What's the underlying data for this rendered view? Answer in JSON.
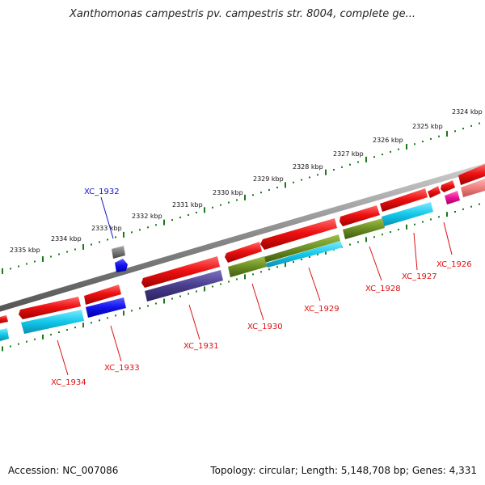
{
  "title": "Xanthomonas campestris pv. campestris str. 8004, complete ge...",
  "footer": {
    "accession": "Accession: NC_007086",
    "summary": "Topology: circular; Length: 5,148,708 bp; Genes: 4,331"
  },
  "ticks": [
    {
      "label": "2324 kbp"
    },
    {
      "label": "2325 kbp"
    },
    {
      "label": "2326 kbp"
    },
    {
      "label": "2327 kbp"
    },
    {
      "label": "2328 kbp"
    },
    {
      "label": "2329 kbp"
    },
    {
      "label": "2330 kbp"
    },
    {
      "label": "2331 kbp"
    },
    {
      "label": "2332 kbp"
    },
    {
      "label": "2333 kbp"
    },
    {
      "label": "2334 kbp"
    },
    {
      "label": "2335 kbp"
    }
  ],
  "genes": [
    {
      "label": "XC_1926",
      "color": "#dd1111"
    },
    {
      "label": "XC_1927",
      "color": "#dd1111"
    },
    {
      "label": "XC_1928",
      "color": "#dd1111"
    },
    {
      "label": "XC_1929",
      "color": "#dd1111"
    },
    {
      "label": "XC_1930",
      "color": "#dd1111"
    },
    {
      "label": "XC_1931",
      "color": "#dd1111"
    },
    {
      "label": "XC_1932",
      "color": "#1111cc"
    },
    {
      "label": "XC_1933",
      "color": "#dd1111"
    },
    {
      "label": "XC_1934",
      "color": "#dd1111"
    }
  ],
  "colors": {
    "cds_red": "#ee1111",
    "cyan": "#11ccee",
    "olive": "#6b8e23",
    "slate": "#483d8b",
    "blue": "#1111ee",
    "magenta": "#ee1199",
    "pink": "#f08080",
    "gray": "#777777",
    "tick_green": "#1a7a1a"
  }
}
